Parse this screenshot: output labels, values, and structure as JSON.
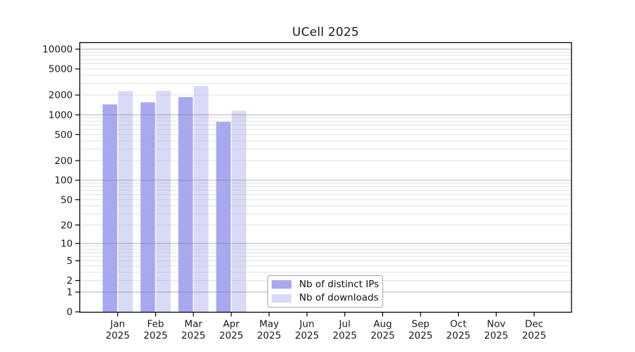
{
  "page": {
    "background_color": "#ffffff",
    "text_color": "#1a1a1a"
  },
  "chart_data": {
    "type": "bar",
    "title": "UCell 2025",
    "categories": [
      "Jan",
      "Feb",
      "Mar",
      "Apr",
      "May",
      "Jun",
      "Jul",
      "Aug",
      "Sep",
      "Oct",
      "Nov",
      "Dec"
    ],
    "year_label": "2025",
    "series": [
      {
        "name": "Nb of distinct IPs",
        "color": "#a8a8f2",
        "values": [
          1440,
          1550,
          1860,
          780,
          0,
          0,
          0,
          0,
          0,
          0,
          0,
          0
        ]
      },
      {
        "name": "Nb of downloads",
        "color": "#d9d9f8",
        "values": [
          2300,
          2320,
          2740,
          1150,
          0,
          0,
          0,
          0,
          0,
          0,
          0,
          0
        ]
      }
    ],
    "y_ticks": [
      0,
      1,
      2,
      5,
      10,
      20,
      50,
      100,
      200,
      500,
      1000,
      2000,
      5000,
      10000
    ],
    "ylim": [
      0,
      10000
    ],
    "y_scale": "log1p",
    "grid": "horizontal-major-and-minor",
    "legend_position": "inside-bottom-center",
    "legend_entries": [
      "Nb of distinct IPs",
      "Nb of downloads"
    ],
    "grid_major_color": "#bdbdbd",
    "grid_minor_color": "#e3e3e3",
    "axis_color": "#000000"
  }
}
